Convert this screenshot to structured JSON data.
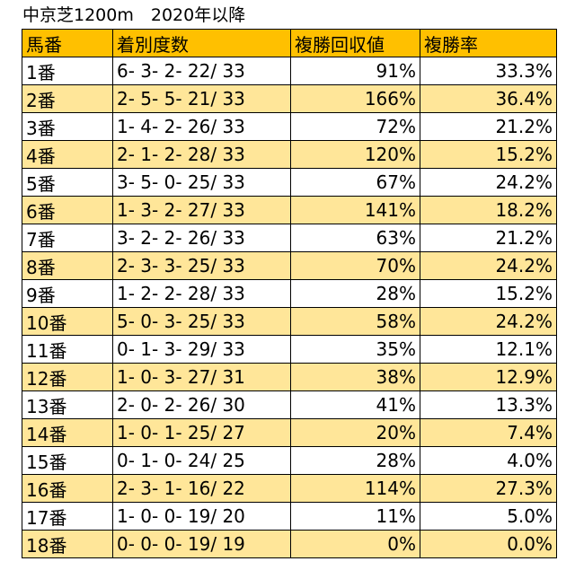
{
  "title": "中京芝1200m　2020年以降",
  "colors": {
    "header_bg": "#ffc000",
    "alt_row_bg": "#ffe699",
    "row_bg": "#ffffff"
  },
  "table": {
    "headers": [
      "馬番",
      "着別度数",
      "複勝回収値",
      "複勝率"
    ],
    "rows": [
      [
        "1番",
        "6- 3- 2- 22/ 33",
        "91%",
        "33.3%"
      ],
      [
        "2番",
        "2- 5- 5- 21/ 33",
        "166%",
        "36.4%"
      ],
      [
        "3番",
        "1- 4- 2- 26/ 33",
        "72%",
        "21.2%"
      ],
      [
        "4番",
        "2- 1- 2- 28/ 33",
        "120%",
        "15.2%"
      ],
      [
        "5番",
        "3- 5- 0- 25/ 33",
        "67%",
        "24.2%"
      ],
      [
        "6番",
        "1- 3- 2- 27/ 33",
        "141%",
        "18.2%"
      ],
      [
        "7番",
        "3- 2- 2- 26/ 33",
        "63%",
        "21.2%"
      ],
      [
        "8番",
        "2- 3- 3- 25/ 33",
        "70%",
        "24.2%"
      ],
      [
        "9番",
        "1- 2- 2- 28/ 33",
        "28%",
        "15.2%"
      ],
      [
        "10番",
        "5- 0- 3- 25/ 33",
        "58%",
        "24.2%"
      ],
      [
        "11番",
        "0- 1- 3- 29/ 33",
        "35%",
        "12.1%"
      ],
      [
        "12番",
        "1- 0- 3- 27/ 31",
        "38%",
        "12.9%"
      ],
      [
        "13番",
        "2- 0- 2- 26/ 30",
        "41%",
        "13.3%"
      ],
      [
        "14番",
        "1- 0- 1- 25/ 27",
        "20%",
        "7.4%"
      ],
      [
        "15番",
        "0- 1- 0- 24/ 25",
        "28%",
        "4.0%"
      ],
      [
        "16番",
        "2- 3- 1- 16/ 22",
        "114%",
        "27.3%"
      ],
      [
        "17番",
        "1- 0- 0- 19/ 20",
        "11%",
        "5.0%"
      ],
      [
        "18番",
        "0- 0- 0- 19/ 19",
        "0%",
        "0.0%"
      ]
    ]
  }
}
